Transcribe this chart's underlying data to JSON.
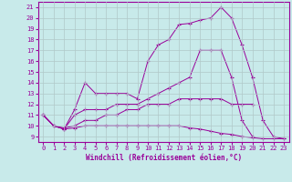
{
  "xlabel": "Windchill (Refroidissement éolien,°C)",
  "bg_color": "#c8eaea",
  "line_color": "#990099",
  "grid_color": "#b0c8c8",
  "xlim": [
    -0.5,
    23.5
  ],
  "ylim": [
    8.5,
    21.5
  ],
  "yticks": [
    9,
    10,
    11,
    12,
    13,
    14,
    15,
    16,
    17,
    18,
    19,
    20,
    21
  ],
  "xticks": [
    0,
    1,
    2,
    3,
    4,
    5,
    6,
    7,
    8,
    9,
    10,
    11,
    12,
    13,
    14,
    15,
    16,
    17,
    18,
    19,
    20,
    21,
    22,
    23
  ],
  "lines": [
    {
      "x": [
        0,
        1,
        2,
        3,
        4,
        5,
        6,
        7,
        8,
        9,
        10,
        11,
        12,
        13,
        14,
        15,
        16,
        17,
        18,
        19,
        20,
        21,
        22,
        23
      ],
      "y": [
        11,
        10,
        9.7,
        11.5,
        14,
        13,
        13,
        13,
        13,
        12.5,
        16,
        17.5,
        18,
        19.4,
        19.5,
        19.8,
        20,
        21,
        20,
        17.5,
        14.5,
        10.5,
        9,
        8.8
      ]
    },
    {
      "x": [
        0,
        1,
        2,
        3,
        4,
        5,
        6,
        7,
        8,
        9,
        10,
        11,
        12,
        13,
        14,
        15,
        16,
        17,
        18,
        19,
        20
      ],
      "y": [
        11,
        10,
        9.7,
        11,
        11.5,
        11.5,
        11.5,
        12,
        12,
        12,
        12.5,
        13,
        13.5,
        14,
        14.5,
        17,
        17,
        17,
        14.5,
        10.5,
        9
      ]
    },
    {
      "x": [
        0,
        1,
        2,
        3,
        4,
        5,
        6,
        7,
        8,
        9,
        10,
        11,
        12,
        13,
        14,
        15,
        16,
        17,
        18,
        19,
        20
      ],
      "y": [
        11,
        10,
        9.8,
        10,
        10.5,
        10.5,
        11,
        11,
        11.5,
        11.5,
        12,
        12,
        12,
        12.5,
        12.5,
        12.5,
        12.5,
        12.5,
        12,
        12,
        12
      ]
    },
    {
      "x": [
        0,
        1,
        2,
        3,
        4,
        5,
        6,
        7,
        8,
        9,
        10,
        11,
        12,
        13,
        14,
        15,
        16,
        17,
        18,
        19,
        20,
        21,
        22,
        23
      ],
      "y": [
        11,
        10,
        9.7,
        9.8,
        10,
        10,
        10,
        10,
        10,
        10,
        10,
        10,
        10,
        10,
        9.8,
        9.7,
        9.5,
        9.3,
        9.2,
        9,
        8.9,
        8.8,
        8.8,
        8.8
      ]
    }
  ]
}
